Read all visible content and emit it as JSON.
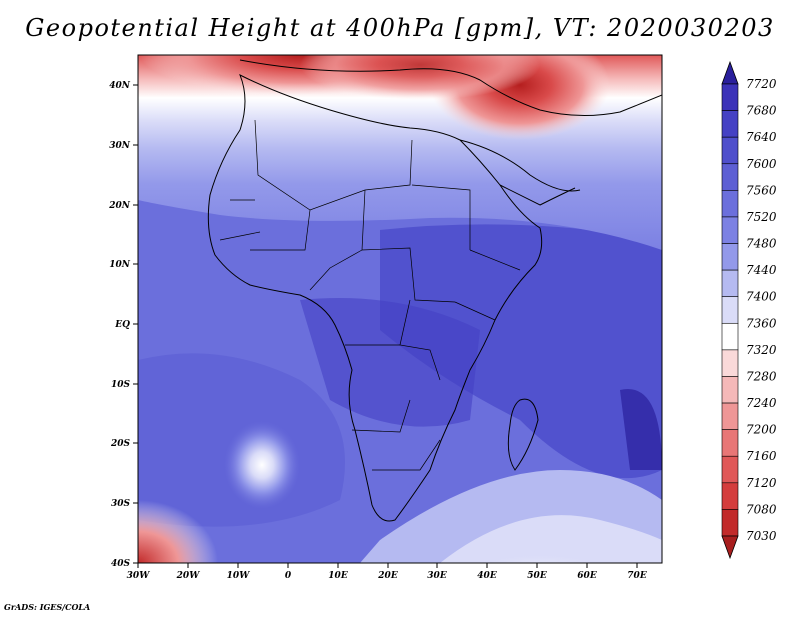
{
  "title": "Geopotential Height at 400hPa [gpm], VT: 2020030203",
  "credit": "GrADS: IGES/COLA",
  "lat_labels": [
    "40N",
    "30N",
    "20N",
    "10N",
    "EQ",
    "10S",
    "20S",
    "30S",
    "40S"
  ],
  "lon_labels": [
    "30W",
    "20W",
    "10W",
    "0",
    "10E",
    "20E",
    "30E",
    "40E",
    "50E",
    "60E",
    "70E"
  ],
  "colorbar": {
    "levels": [
      "7720",
      "7680",
      "7640",
      "7600",
      "7560",
      "7520",
      "7480",
      "7440",
      "7400",
      "7360",
      "7320",
      "7280",
      "7240",
      "7200",
      "7160",
      "7120",
      "7080",
      "7030"
    ],
    "colors": [
      "#2a1f9c",
      "#3b32b8",
      "#4541c4",
      "#4f4fcc",
      "#5d5fd4",
      "#6b6fdc",
      "#7c81e3",
      "#9399ea",
      "#b5baf1",
      "#dadcf8",
      "#ffffff",
      "#fad9d9",
      "#f5b8b8",
      "#ef9696",
      "#e87676",
      "#e05858",
      "#d43d3d",
      "#c22a2a",
      "#a81e1e"
    ]
  },
  "map": {
    "projection": "lat-lon",
    "lon_range": [
      -30,
      75
    ],
    "lat_range": [
      -40,
      45
    ],
    "field": "geopotential height 400hPa",
    "valid_time": "2020030203"
  }
}
